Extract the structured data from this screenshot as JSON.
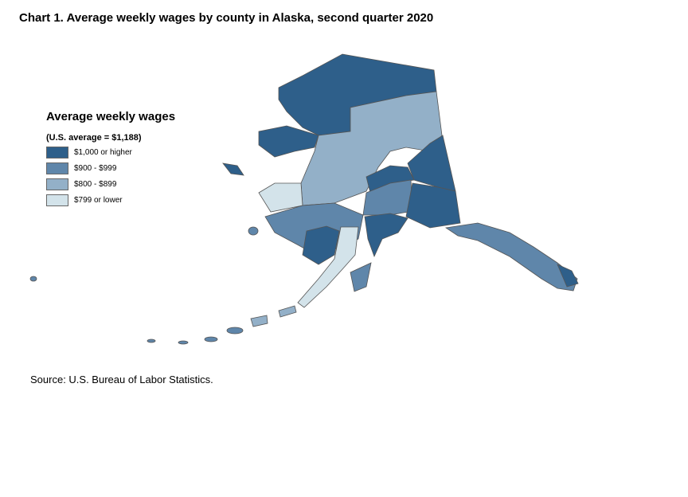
{
  "title": "Chart 1. Average weekly wages by county in Alaska, second quarter 2020",
  "legend": {
    "title": "Average weekly wages",
    "subtitle": "(U.S. average = $1,188)",
    "classes": [
      {
        "label": "$1,000 or higher",
        "color": "#2e5f8a"
      },
      {
        "label": "$900 - $999",
        "color": "#5f86aa"
      },
      {
        "label": "$800 - $899",
        "color": "#93b0c8"
      },
      {
        "label": "$799 or lower",
        "color": "#d3e3ea"
      }
    ]
  },
  "source": "Source: U.S. Bureau of Labor Statistics."
}
